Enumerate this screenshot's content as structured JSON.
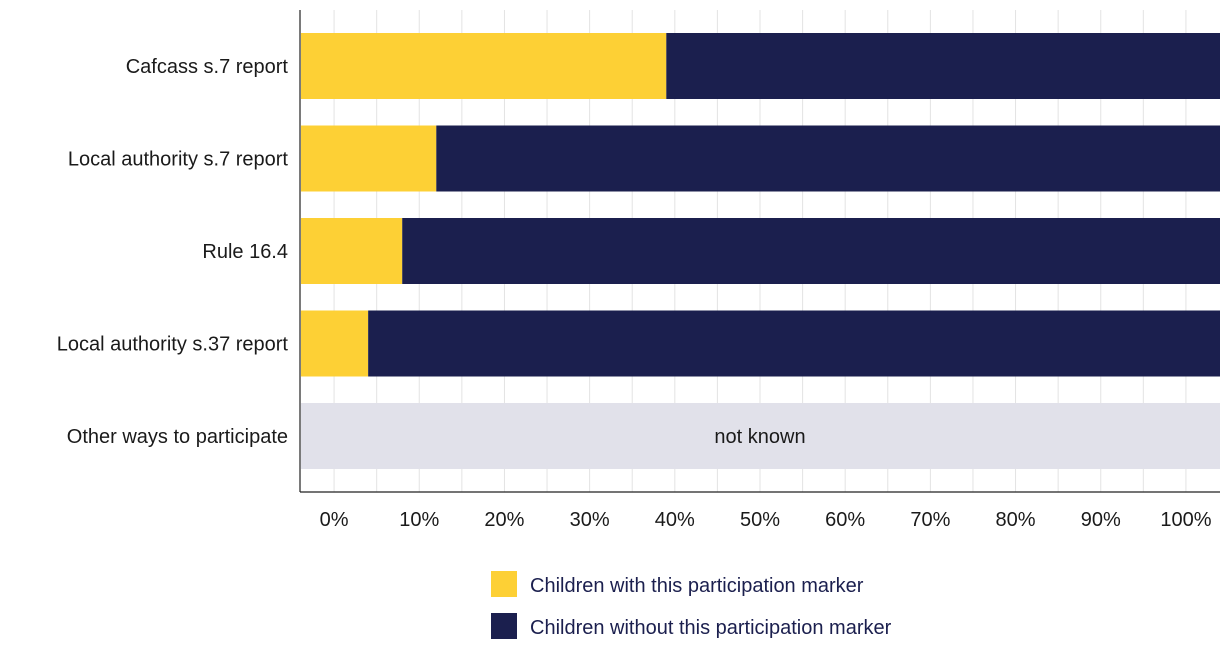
{
  "chart_data": {
    "type": "bar",
    "orientation": "horizontal",
    "stacked": true,
    "categories": [
      "Cafcass s.7 report",
      "Local authority s.7 report",
      "Rule 16.4",
      "Local authority s.37 report",
      "Other ways to participate"
    ],
    "series": [
      {
        "name": "Children with this participation marker",
        "values": [
          39,
          12,
          8,
          4,
          null
        ],
        "color": "#fdd035"
      },
      {
        "name": "Children without this participation marker",
        "values": [
          61,
          88,
          92,
          96,
          null
        ],
        "color": "#1b1f4e"
      }
    ],
    "not_known": {
      "category_index": 4,
      "label": "not known",
      "color": "#e1e1ea"
    },
    "xlim": [
      -4,
      104
    ],
    "xticks": [
      0,
      10,
      20,
      30,
      40,
      50,
      60,
      70,
      80,
      90,
      100
    ],
    "xtick_labels": [
      "0%",
      "10%",
      "20%",
      "30%",
      "40%",
      "50%",
      "60%",
      "70%",
      "80%",
      "90%",
      "100%"
    ],
    "grid": true,
    "legend_position": "bottom"
  }
}
